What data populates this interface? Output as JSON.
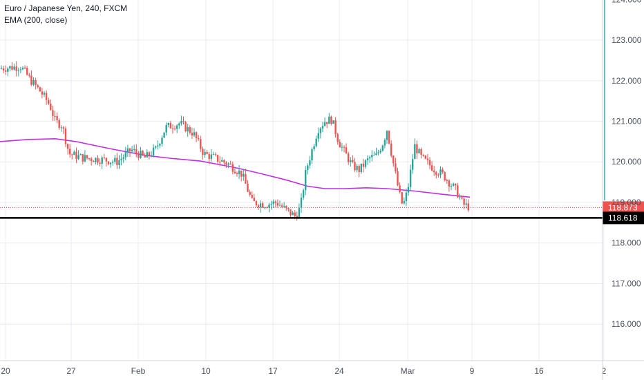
{
  "header": {
    "symbol_line": "Euro / Japanese Yen, 240, FXCM",
    "indicator_line": "EMA (200, close)"
  },
  "colors": {
    "up": "#26a69a",
    "down": "#ef5350",
    "ema": "#c12de5",
    "price_line": "#ef5350",
    "price_label_bg": "#ef5350",
    "support_line": "#000000",
    "grid": "#e9ebf0",
    "axis_text": "#4a4f5a"
  },
  "chart_data": {
    "type": "candlestick",
    "symbol": "Euro / Japanese Yen",
    "interval": "240",
    "source": "FXCM",
    "y_axis": {
      "ticks": [
        "124.000",
        "123.000",
        "122.000",
        "121.000",
        "120.000",
        "119.000",
        "118.000",
        "117.000",
        "116.000"
      ],
      "range": [
        115.1,
        124.05
      ]
    },
    "x_axis": {
      "ticks": [
        "20",
        "27",
        "Feb",
        "10",
        "17",
        "24",
        "Mar",
        "9",
        "16",
        "2"
      ]
    },
    "price_labels": {
      "current": "118.873",
      "support": "118.618"
    },
    "current_price": 118.873,
    "support_level": 118.618,
    "ema_200": [
      [
        0,
        120.5
      ],
      [
        40,
        120.55
      ],
      [
        80,
        120.57
      ],
      [
        110,
        120.5
      ],
      [
        160,
        120.32
      ],
      [
        210,
        120.16
      ],
      [
        250,
        120.08
      ],
      [
        290,
        120.02
      ],
      [
        340,
        119.86
      ],
      [
        380,
        119.7
      ],
      [
        415,
        119.55
      ],
      [
        445,
        119.4
      ],
      [
        470,
        119.34
      ],
      [
        500,
        119.34
      ],
      [
        530,
        119.36
      ],
      [
        560,
        119.34
      ],
      [
        600,
        119.28
      ],
      [
        640,
        119.2
      ],
      [
        680,
        119.13
      ]
    ],
    "ohlc_path": [
      [
        0,
        122.3
      ],
      [
        30,
        122.35
      ],
      [
        45,
        122.0
      ],
      [
        60,
        121.7
      ],
      [
        72,
        121.4
      ],
      [
        80,
        121.0
      ],
      [
        90,
        120.9
      ],
      [
        100,
        120.2
      ],
      [
        120,
        120.1
      ],
      [
        150,
        120.05
      ],
      [
        170,
        120.0
      ],
      [
        190,
        120.3
      ],
      [
        210,
        120.1
      ],
      [
        225,
        120.3
      ],
      [
        240,
        120.85
      ],
      [
        260,
        120.95
      ],
      [
        280,
        120.7
      ],
      [
        295,
        120.2
      ],
      [
        310,
        120.1
      ],
      [
        330,
        119.95
      ],
      [
        350,
        119.7
      ],
      [
        365,
        119.0
      ],
      [
        385,
        118.95
      ],
      [
        400,
        119.0
      ],
      [
        415,
        118.8
      ],
      [
        428,
        118.65
      ],
      [
        435,
        118.9
      ],
      [
        443,
        119.8
      ],
      [
        450,
        120.2
      ],
      [
        460,
        120.8
      ],
      [
        470,
        121.0
      ],
      [
        480,
        121.05
      ],
      [
        490,
        120.5
      ],
      [
        500,
        120.2
      ],
      [
        510,
        119.9
      ],
      [
        520,
        119.8
      ],
      [
        535,
        120.1
      ],
      [
        545,
        120.15
      ],
      [
        555,
        120.5
      ],
      [
        560,
        120.8
      ],
      [
        570,
        119.9
      ],
      [
        578,
        119.2
      ],
      [
        583,
        118.9
      ],
      [
        590,
        119.3
      ],
      [
        600,
        120.4
      ],
      [
        610,
        120.1
      ],
      [
        620,
        119.95
      ],
      [
        630,
        119.8
      ],
      [
        640,
        119.7
      ],
      [
        650,
        119.5
      ],
      [
        660,
        119.3
      ],
      [
        670,
        118.95
      ],
      [
        680,
        118.88
      ]
    ]
  }
}
